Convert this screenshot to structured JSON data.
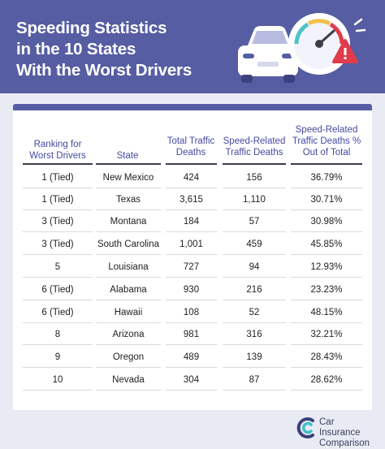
{
  "title": {
    "line1": "Speeding Statistics",
    "line2": "in the 10 States",
    "line3": "With the Worst Drivers"
  },
  "columns": {
    "ranking": "Ranking for Worst Drivers",
    "state": "State",
    "total": "Total Traffic Deaths",
    "speed": "Speed-Related Traffic Deaths",
    "pct": "Speed-Related Traffic Deaths % Out of Total"
  },
  "rows": [
    {
      "rank": "1 (Tied)",
      "state": "New Mexico",
      "total": "424",
      "speed": "156",
      "pct": "36.79%"
    },
    {
      "rank": "1 (Tied)",
      "state": "Texas",
      "total": "3,615",
      "speed": "1,110",
      "pct": "30.71%"
    },
    {
      "rank": "3 (Tied)",
      "state": "Montana",
      "total": "184",
      "speed": "57",
      "pct": "30.98%"
    },
    {
      "rank": "3 (Tied)",
      "state": "South Carolina",
      "total": "1,001",
      "speed": "459",
      "pct": "45.85%"
    },
    {
      "rank": "5",
      "state": "Louisiana",
      "total": "727",
      "speed": "94",
      "pct": "12.93%"
    },
    {
      "rank": "6 (Tied)",
      "state": "Alabama",
      "total": "930",
      "speed": "216",
      "pct": "23.23%"
    },
    {
      "rank": "6 (Tied)",
      "state": "Hawaii",
      "total": "108",
      "speed": "52",
      "pct": "48.15%"
    },
    {
      "rank": "8",
      "state": "Arizona",
      "total": "981",
      "speed": "316",
      "pct": "32.21%"
    },
    {
      "rank": "9",
      "state": "Oregon",
      "total": "489",
      "speed": "139",
      "pct": "28.43%"
    },
    {
      "rank": "10",
      "state": "Nevada",
      "total": "304",
      "speed": "87",
      "pct": "28.62%"
    }
  ],
  "logo": {
    "line1": "Car Insurance",
    "line2": "Comparison"
  },
  "colors": {
    "header_bg": "#565da3",
    "header_text": "#454aa0",
    "page_bg": "#e9ebf4",
    "warning": "#e03c4a"
  },
  "icons": [
    "car-icon",
    "speedometer-icon",
    "warning-icon",
    "logo-icon"
  ]
}
